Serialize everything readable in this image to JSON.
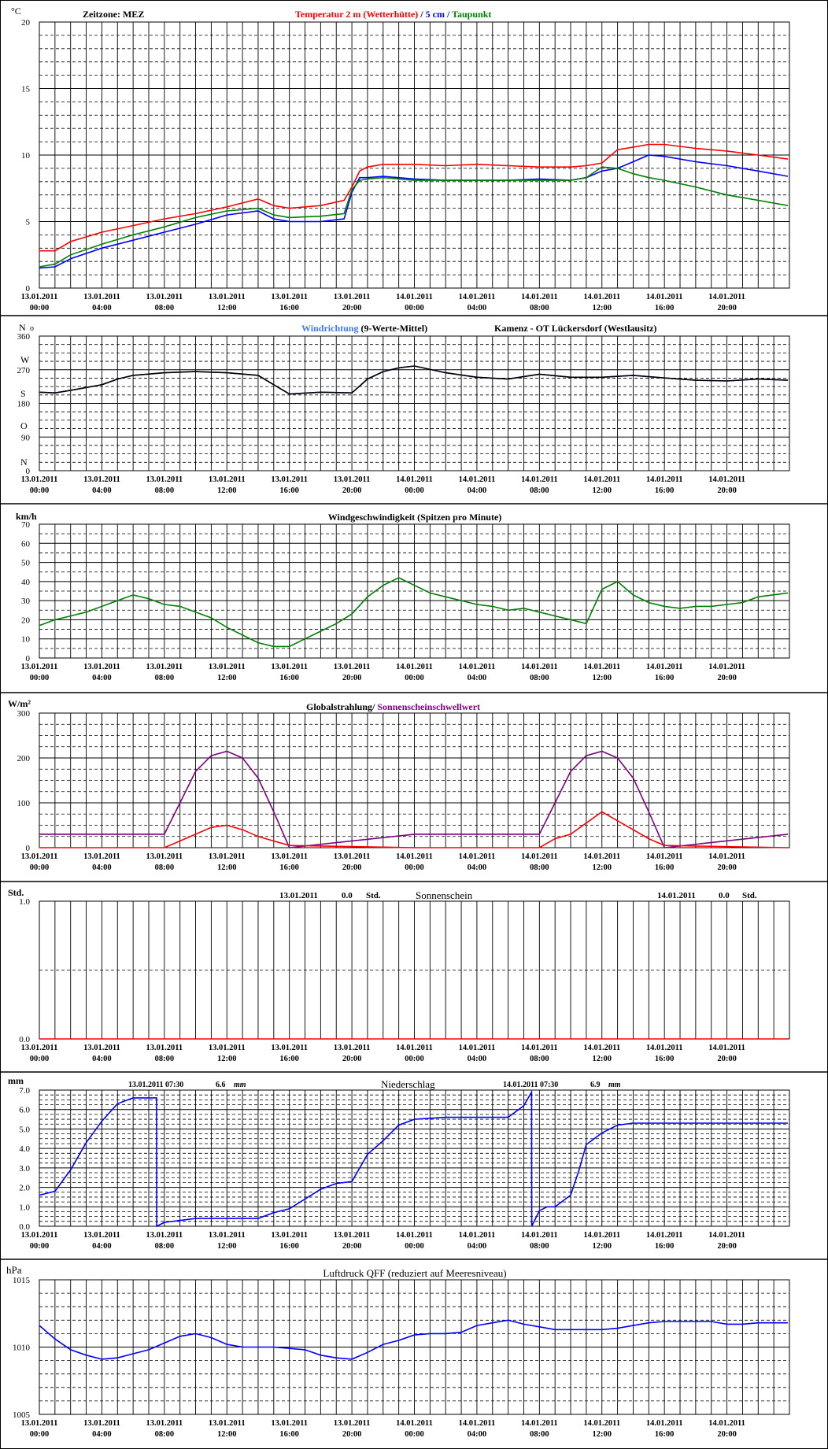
{
  "colors": {
    "temp": "#ff0000",
    "soil": "#0000ff",
    "dew": "#008000",
    "winddir": "#0000ff",
    "winddir_avg": "#000000",
    "wind": "#008000",
    "rad_sun": "#800080",
    "rad": "#ff0000",
    "sunshine": "#ff0000",
    "precip": "#0000ff",
    "pressure": "#0000ff",
    "grid": "#000000"
  },
  "time_ticks": [
    [
      "13.01.2011",
      "00:00"
    ],
    [
      "13.01.2011",
      "04:00"
    ],
    [
      "13.01.2011",
      "08:00"
    ],
    [
      "13.01.2011",
      "12:00"
    ],
    [
      "13.01.2011",
      "16:00"
    ],
    [
      "13.01.2011",
      "20:00"
    ],
    [
      "14.01.2011",
      "00:00"
    ],
    [
      "14.01.2011",
      "04:00"
    ],
    [
      "14.01.2011",
      "08:00"
    ],
    [
      "14.01.2011",
      "12:00"
    ],
    [
      "14.01.2011",
      "16:00"
    ],
    [
      "14.01.2011",
      "20:00"
    ]
  ],
  "panels": {
    "temperature": {
      "unit": "°C",
      "timezone": "Zeitzone: MEZ",
      "legend": [
        {
          "text": "Temperatur 2 m (Wetterhütte)",
          "color": "temp"
        },
        {
          "text": "  /  ",
          "color": "grid"
        },
        {
          "text": "5 cm",
          "color": "soil"
        },
        {
          "text": " / ",
          "color": "soil"
        },
        {
          "text": "Taupunkt",
          "color": "dew"
        }
      ],
      "yticks": [
        "0",
        "5",
        "10",
        "15",
        "20"
      ]
    },
    "winddir": {
      "unit": "N",
      "unit2": "o",
      "legend": [
        {
          "text": "Windrichtung",
          "color": "winddir"
        },
        {
          "text": " (9-Werte-Mittel)",
          "color": "grid"
        }
      ],
      "station": "Kamenz - OT Lückersdorf (Westlausitz)",
      "yticks": [
        "0",
        "90",
        "180",
        "270",
        "360"
      ],
      "compass": [
        "N",
        "O",
        "S",
        "W"
      ]
    },
    "windspeed": {
      "unit": "km/h",
      "title": "Windgeschwindigkeit (Spitzen pro Minute)",
      "yticks": [
        "0",
        "10",
        "20",
        "30",
        "40",
        "50",
        "60",
        "70"
      ]
    },
    "radiation": {
      "unit": "W/m²",
      "title_a": "Globalstrahlung/",
      "title_b": " Sonnenscheinschwellwert",
      "yticks": [
        "0",
        "100",
        "200",
        "300"
      ]
    },
    "sunshine": {
      "unit": "Std.",
      "title": "Sonnenschein",
      "day1": {
        "date": "13.01.2011",
        "value": "0.0",
        "unit": "Std."
      },
      "day2": {
        "date": "14.01.2011",
        "value": "0.0",
        "unit": "Std."
      },
      "yticks": [
        "0.0",
        "1.0"
      ]
    },
    "precip": {
      "unit": "mm",
      "title": "Niederschlag",
      "day1": {
        "date": "13.01.2011 07:30",
        "value": "6.6",
        "unit": "mm"
      },
      "day2": {
        "date": "14.01.2011 07:30",
        "value": "6.9",
        "unit": "mm"
      },
      "yticks": [
        "0.0",
        "1.0",
        "2.0",
        "3.0",
        "4.0",
        "5.0",
        "6.0",
        "7.0"
      ]
    },
    "pressure": {
      "unit": "hPa",
      "title": "Luftdruck QFF (reduziert auf Meeresniveau)",
      "yticks": [
        "1005",
        "1010",
        "1015"
      ]
    }
  },
  "chart_data": [
    {
      "type": "line",
      "panel": "temperature",
      "x_hours": [
        0,
        1,
        2,
        4,
        6,
        8,
        10,
        12,
        14,
        15,
        16,
        18,
        19.5,
        20,
        20.5,
        21,
        22,
        24,
        26,
        28,
        30,
        32,
        34,
        35,
        36,
        37,
        38,
        39,
        40,
        42,
        44,
        46,
        47.9
      ],
      "series": [
        {
          "name": "Temperatur 2 m (Wetterhütte)",
          "color": "temp",
          "values": [
            2.8,
            2.8,
            3.5,
            4.2,
            4.7,
            5.2,
            5.6,
            6.1,
            6.7,
            6.2,
            6.0,
            6.2,
            6.6,
            7.6,
            8.8,
            9.1,
            9.3,
            9.3,
            9.2,
            9.3,
            9.2,
            9.1,
            9.1,
            9.2,
            9.4,
            10.4,
            10.6,
            10.8,
            10.8,
            10.5,
            10.3,
            10.0,
            9.7
          ]
        },
        {
          "name": "5 cm",
          "color": "soil",
          "values": [
            1.5,
            1.6,
            2.2,
            3.0,
            3.6,
            4.2,
            4.8,
            5.5,
            5.8,
            5.2,
            5.0,
            5.0,
            5.2,
            7.2,
            8.3,
            8.3,
            8.4,
            8.2,
            8.1,
            8.1,
            8.1,
            8.2,
            8.1,
            8.3,
            8.8,
            9.0,
            9.5,
            10.0,
            9.9,
            9.5,
            9.2,
            8.8,
            8.4
          ]
        },
        {
          "name": "Taupunkt",
          "color": "dew",
          "values": [
            1.6,
            1.8,
            2.5,
            3.3,
            4.0,
            4.6,
            5.3,
            5.8,
            6.0,
            5.5,
            5.3,
            5.4,
            5.6,
            7.4,
            8.1,
            8.2,
            8.3,
            8.1,
            8.1,
            8.1,
            8.1,
            8.1,
            8.1,
            8.3,
            9.1,
            9.0,
            8.6,
            8.3,
            8.1,
            7.6,
            7.0,
            6.6,
            6.2
          ]
        }
      ],
      "ylim": [
        0,
        20
      ]
    },
    {
      "type": "line",
      "panel": "winddir",
      "x_hours": [
        0,
        1,
        2,
        4,
        5,
        6,
        8,
        10,
        12,
        14,
        15,
        16,
        18,
        20,
        21,
        22,
        23,
        24,
        26,
        28,
        30,
        32,
        34,
        36,
        38,
        40,
        42,
        44,
        46,
        47.9
      ],
      "series": [
        {
          "name": "Windrichtung",
          "color": "winddir",
          "values": [
            210,
            208,
            215,
            230,
            245,
            255,
            262,
            265,
            262,
            255,
            230,
            205,
            210,
            208,
            245,
            265,
            275,
            280,
            262,
            250,
            245,
            258,
            250,
            250,
            255,
            248,
            242,
            240,
            245,
            242
          ]
        }
      ],
      "ylim": [
        0,
        360
      ]
    },
    {
      "type": "line",
      "panel": "windspeed",
      "x_hours": [
        0,
        1,
        2,
        3,
        4,
        5,
        6,
        7,
        8,
        9,
        10,
        11,
        12,
        13,
        14,
        15,
        16,
        17,
        18,
        19,
        20,
        21,
        22,
        23,
        24,
        25,
        26,
        27,
        28,
        29,
        30,
        31,
        32,
        33,
        34,
        35,
        36,
        37,
        38,
        39,
        40,
        41,
        42,
        43,
        44,
        45,
        46,
        47.9
      ],
      "series": [
        {
          "name": "Windgeschwindigkeit",
          "color": "wind",
          "values": [
            17,
            20,
            22,
            24,
            27,
            30,
            33,
            31,
            28,
            27,
            24,
            21,
            16,
            12,
            8,
            6,
            6,
            10,
            14,
            18,
            23,
            32,
            38,
            42,
            38,
            34,
            32,
            30,
            28,
            27,
            25,
            26,
            24,
            22,
            20,
            18,
            36,
            40,
            33,
            29,
            27,
            26,
            27,
            27,
            28,
            29,
            32,
            34
          ]
        }
      ],
      "ylim": [
        0,
        70
      ]
    },
    {
      "type": "line",
      "panel": "radiation",
      "x_hours": [
        0,
        8,
        9,
        10,
        11,
        12,
        13,
        14,
        15,
        16,
        24,
        32,
        33,
        34,
        35,
        36,
        37,
        38,
        39,
        40,
        47.9
      ],
      "series": [
        {
          "name": "Sonnenscheinschwellwert",
          "color": "rad_sun",
          "values": [
            30,
            30,
            100,
            170,
            205,
            215,
            200,
            155,
            80,
            0,
            30,
            30,
            100,
            170,
            205,
            215,
            200,
            155,
            80,
            0,
            30
          ]
        },
        {
          "name": "Globalstrahlung",
          "color": "rad",
          "values": [
            0,
            0,
            15,
            30,
            45,
            50,
            40,
            25,
            15,
            5,
            0,
            0,
            20,
            30,
            55,
            80,
            60,
            40,
            20,
            5,
            0
          ]
        }
      ],
      "ylim": [
        0,
        300
      ]
    },
    {
      "type": "line",
      "panel": "sunshine",
      "x_hours": [
        0,
        47.9
      ],
      "series": [
        {
          "name": "Sonnenschein",
          "color": "sunshine",
          "values": [
            0,
            0
          ]
        }
      ],
      "ylim": [
        0,
        1
      ]
    },
    {
      "type": "line",
      "panel": "precip",
      "x_hours": [
        0,
        1,
        2,
        3,
        4,
        5,
        6,
        7,
        7.5,
        7.51,
        8,
        10,
        12,
        14,
        15,
        16,
        17,
        18,
        19,
        20,
        21,
        22,
        23,
        24,
        26,
        28,
        30,
        31,
        31.5,
        31.51,
        32,
        32.5,
        33,
        34,
        34.5,
        35,
        36,
        37,
        38,
        40,
        42,
        44,
        46,
        47.9
      ],
      "series": [
        {
          "name": "Niederschlag",
          "color": "precip",
          "values": [
            1.6,
            1.8,
            2.9,
            4.3,
            5.4,
            6.3,
            6.6,
            6.6,
            6.6,
            0.0,
            0.2,
            0.4,
            0.4,
            0.4,
            0.7,
            0.9,
            1.4,
            1.9,
            2.2,
            2.3,
            3.7,
            4.4,
            5.2,
            5.5,
            5.6,
            5.6,
            5.6,
            6.2,
            6.9,
            0.0,
            0.8,
            1.0,
            1.0,
            1.6,
            2.8,
            4.2,
            4.8,
            5.2,
            5.3,
            5.3,
            5.3,
            5.3,
            5.3,
            5.3
          ]
        }
      ],
      "ylim": [
        0,
        7
      ]
    },
    {
      "type": "line",
      "panel": "pressure",
      "x_hours": [
        0,
        1,
        2,
        3,
        4,
        5,
        6,
        7,
        8,
        9,
        10,
        11,
        12,
        13,
        14,
        15,
        16,
        17,
        18,
        19,
        20,
        21,
        22,
        23,
        24,
        25,
        26,
        27,
        28,
        29,
        30,
        31,
        32,
        33,
        34,
        35,
        36,
        37,
        38,
        39,
        40,
        41,
        42,
        43,
        44,
        45,
        46,
        47.9
      ],
      "series": [
        {
          "name": "Luftdruck QFF",
          "color": "pressure",
          "values": [
            1011.6,
            1010.6,
            1009.8,
            1009.4,
            1009.1,
            1009.2,
            1009.5,
            1009.8,
            1010.3,
            1010.8,
            1011.0,
            1010.7,
            1010.2,
            1010.0,
            1010.0,
            1010.0,
            1009.9,
            1009.8,
            1009.4,
            1009.2,
            1009.1,
            1009.6,
            1010.2,
            1010.5,
            1010.9,
            1011.0,
            1011.0,
            1011.1,
            1011.6,
            1011.8,
            1012.0,
            1011.7,
            1011.5,
            1011.3,
            1011.3,
            1011.3,
            1011.3,
            1011.4,
            1011.6,
            1011.8,
            1011.9,
            1011.9,
            1011.9,
            1011.9,
            1011.7,
            1011.7,
            1011.8,
            1011.8
          ]
        }
      ],
      "ylim": [
        1005,
        1015
      ]
    }
  ]
}
